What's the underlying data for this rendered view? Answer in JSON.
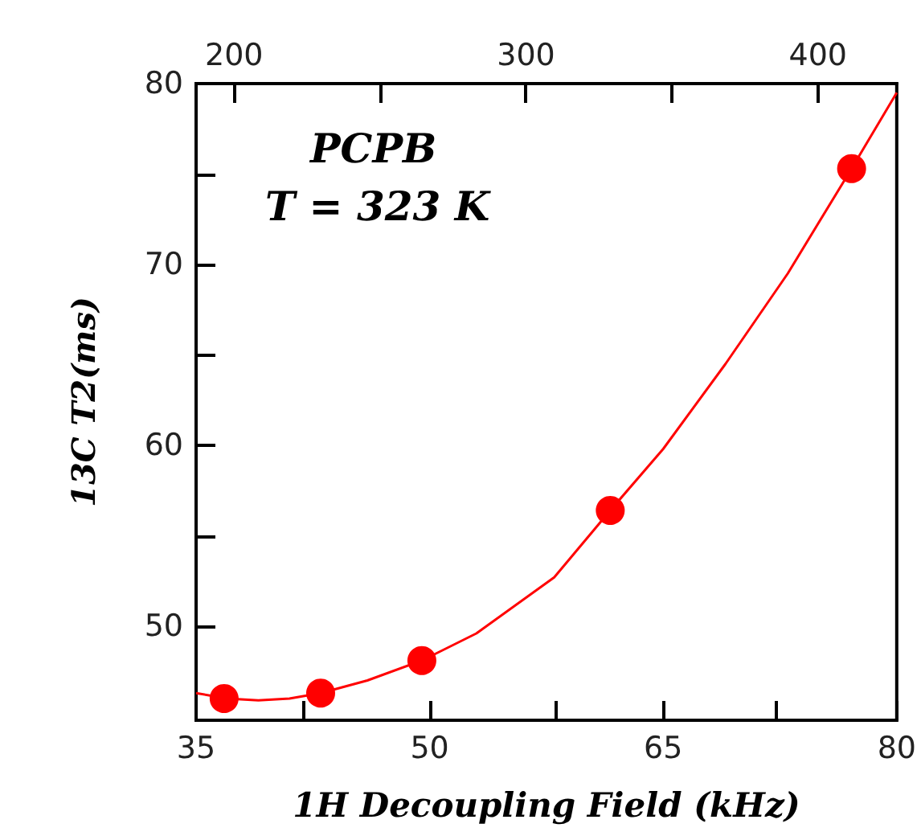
{
  "chart_data": {
    "type": "scatter",
    "annotations": [
      "PCPB",
      "T = 323 K"
    ],
    "xlabel": "1H Decoupling Field (kHz)",
    "ylabel": "13C T2(ms)",
    "xlim": [
      35,
      80
    ],
    "xticks": [
      35,
      50,
      65,
      80,
      {
        "value": 41.9,
        "label": null
      },
      {
        "value": 58.1,
        "label": null
      },
      {
        "value": 72.2,
        "label": null
      }
    ],
    "x2lim": [
      187,
      427
    ],
    "x2ticks": [
      200,
      300,
      400,
      {
        "value": 250,
        "label": null
      },
      {
        "value": 350,
        "label": null
      }
    ],
    "ylim": [
      44.8,
      80
    ],
    "yticks": [
      50,
      60,
      70,
      80,
      {
        "value": 55,
        "label": null
      },
      {
        "value": 65,
        "label": null
      },
      {
        "value": 75,
        "label": null
      }
    ],
    "grid": false,
    "marker": "circle",
    "series": [
      {
        "type": "line",
        "color": "#ff0000",
        "marker": "none",
        "line_style": "solid",
        "x": [
          35,
          37,
          39,
          41,
          43,
          46,
          49.5,
          53,
          58,
          61.6,
          65,
          69,
          73,
          77.1,
          80
        ],
        "values": [
          46.3,
          46.0,
          45.9,
          46.0,
          46.3,
          47.0,
          48.1,
          49.6,
          52.7,
          56.4,
          59.8,
          64.5,
          69.5,
          75.3,
          79.5
        ]
      },
      {
        "type": "scatter",
        "color": "#ff0000",
        "x": [
          36.8,
          43.0,
          49.5,
          61.6,
          77.1
        ],
        "values": [
          46.0,
          46.3,
          48.1,
          56.4,
          75.3
        ]
      }
    ]
  }
}
